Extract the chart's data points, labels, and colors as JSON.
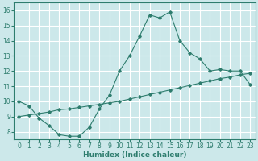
{
  "xlabel": "Humidex (Indice chaleur)",
  "ylabel": "",
  "bg_color": "#cce8ea",
  "grid_color": "#ffffff",
  "line_color": "#2e7d6e",
  "xlim": [
    -0.5,
    23.5
  ],
  "ylim": [
    7.5,
    16.5
  ],
  "xticks": [
    0,
    1,
    2,
    3,
    4,
    5,
    6,
    7,
    8,
    9,
    10,
    11,
    12,
    13,
    14,
    15,
    16,
    17,
    18,
    19,
    20,
    21,
    22,
    23
  ],
  "yticks": [
    8,
    9,
    10,
    11,
    12,
    13,
    14,
    15,
    16
  ],
  "curve1_x": [
    0,
    1,
    2,
    3,
    4,
    5,
    6,
    7,
    8,
    9,
    10,
    11,
    12,
    13,
    14,
    15,
    16,
    17,
    18,
    19,
    20,
    21,
    22,
    23
  ],
  "curve1_y": [
    10.0,
    9.7,
    8.9,
    8.4,
    7.8,
    7.7,
    7.7,
    8.3,
    9.5,
    10.4,
    12.0,
    13.0,
    14.3,
    15.7,
    15.5,
    15.9,
    14.0,
    13.2,
    12.8,
    12.0,
    12.1,
    12.0,
    12.0,
    11.1
  ],
  "curve2_x": [
    0,
    1,
    2,
    3,
    4,
    5,
    6,
    7,
    8,
    9,
    10,
    11,
    12,
    13,
    14,
    15,
    16,
    17,
    18,
    19,
    20,
    21,
    22,
    23
  ],
  "curve2_y": [
    9.0,
    9.1,
    9.2,
    9.3,
    9.45,
    9.5,
    9.6,
    9.7,
    9.8,
    9.9,
    10.0,
    10.15,
    10.3,
    10.45,
    10.6,
    10.75,
    10.9,
    11.05,
    11.2,
    11.35,
    11.5,
    11.6,
    11.75,
    11.85
  ]
}
